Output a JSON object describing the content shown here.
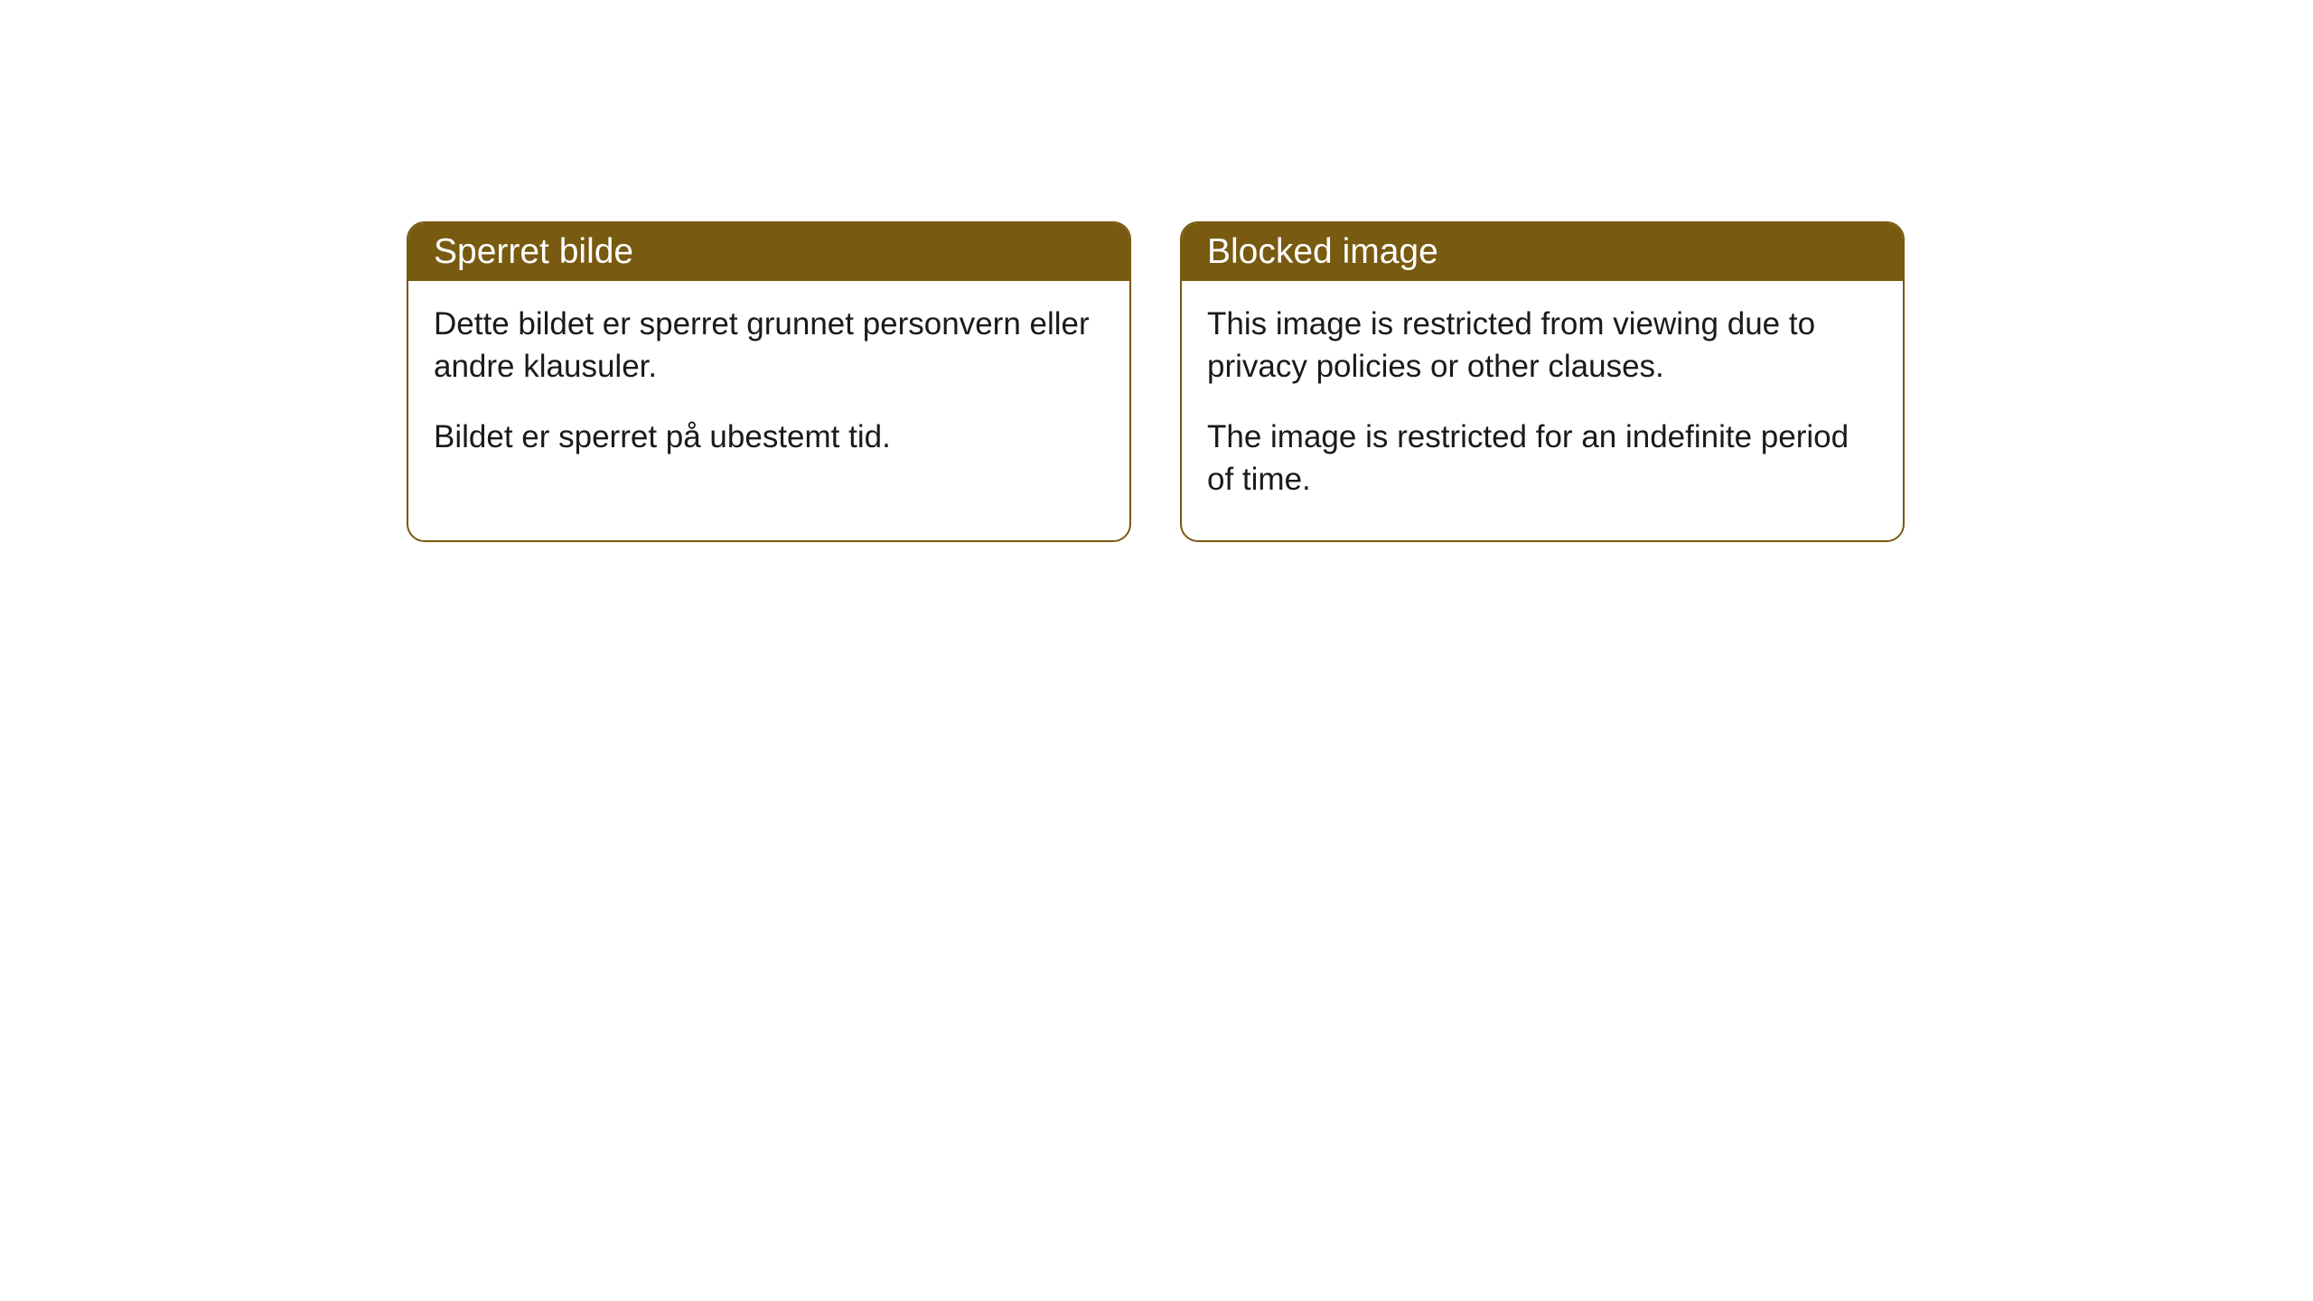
{
  "cards": [
    {
      "title": "Sperret bilde",
      "paragraph1": "Dette bildet er sperret grunnet personvern eller andre klausuler.",
      "paragraph2": "Bildet er sperret på ubestemt tid."
    },
    {
      "title": "Blocked image",
      "paragraph1": "This image is restricted from viewing due to privacy policies or other clauses.",
      "paragraph2": "The image is restricted for an indefinite period of time."
    }
  ],
  "styling": {
    "header_background_color": "#785a10",
    "header_text_color": "#ffffff",
    "border_color": "#785a10",
    "body_background_color": "#ffffff",
    "body_text_color": "#1a1a1a",
    "border_radius": "20px",
    "header_fontsize": 39,
    "body_fontsize": 35
  }
}
